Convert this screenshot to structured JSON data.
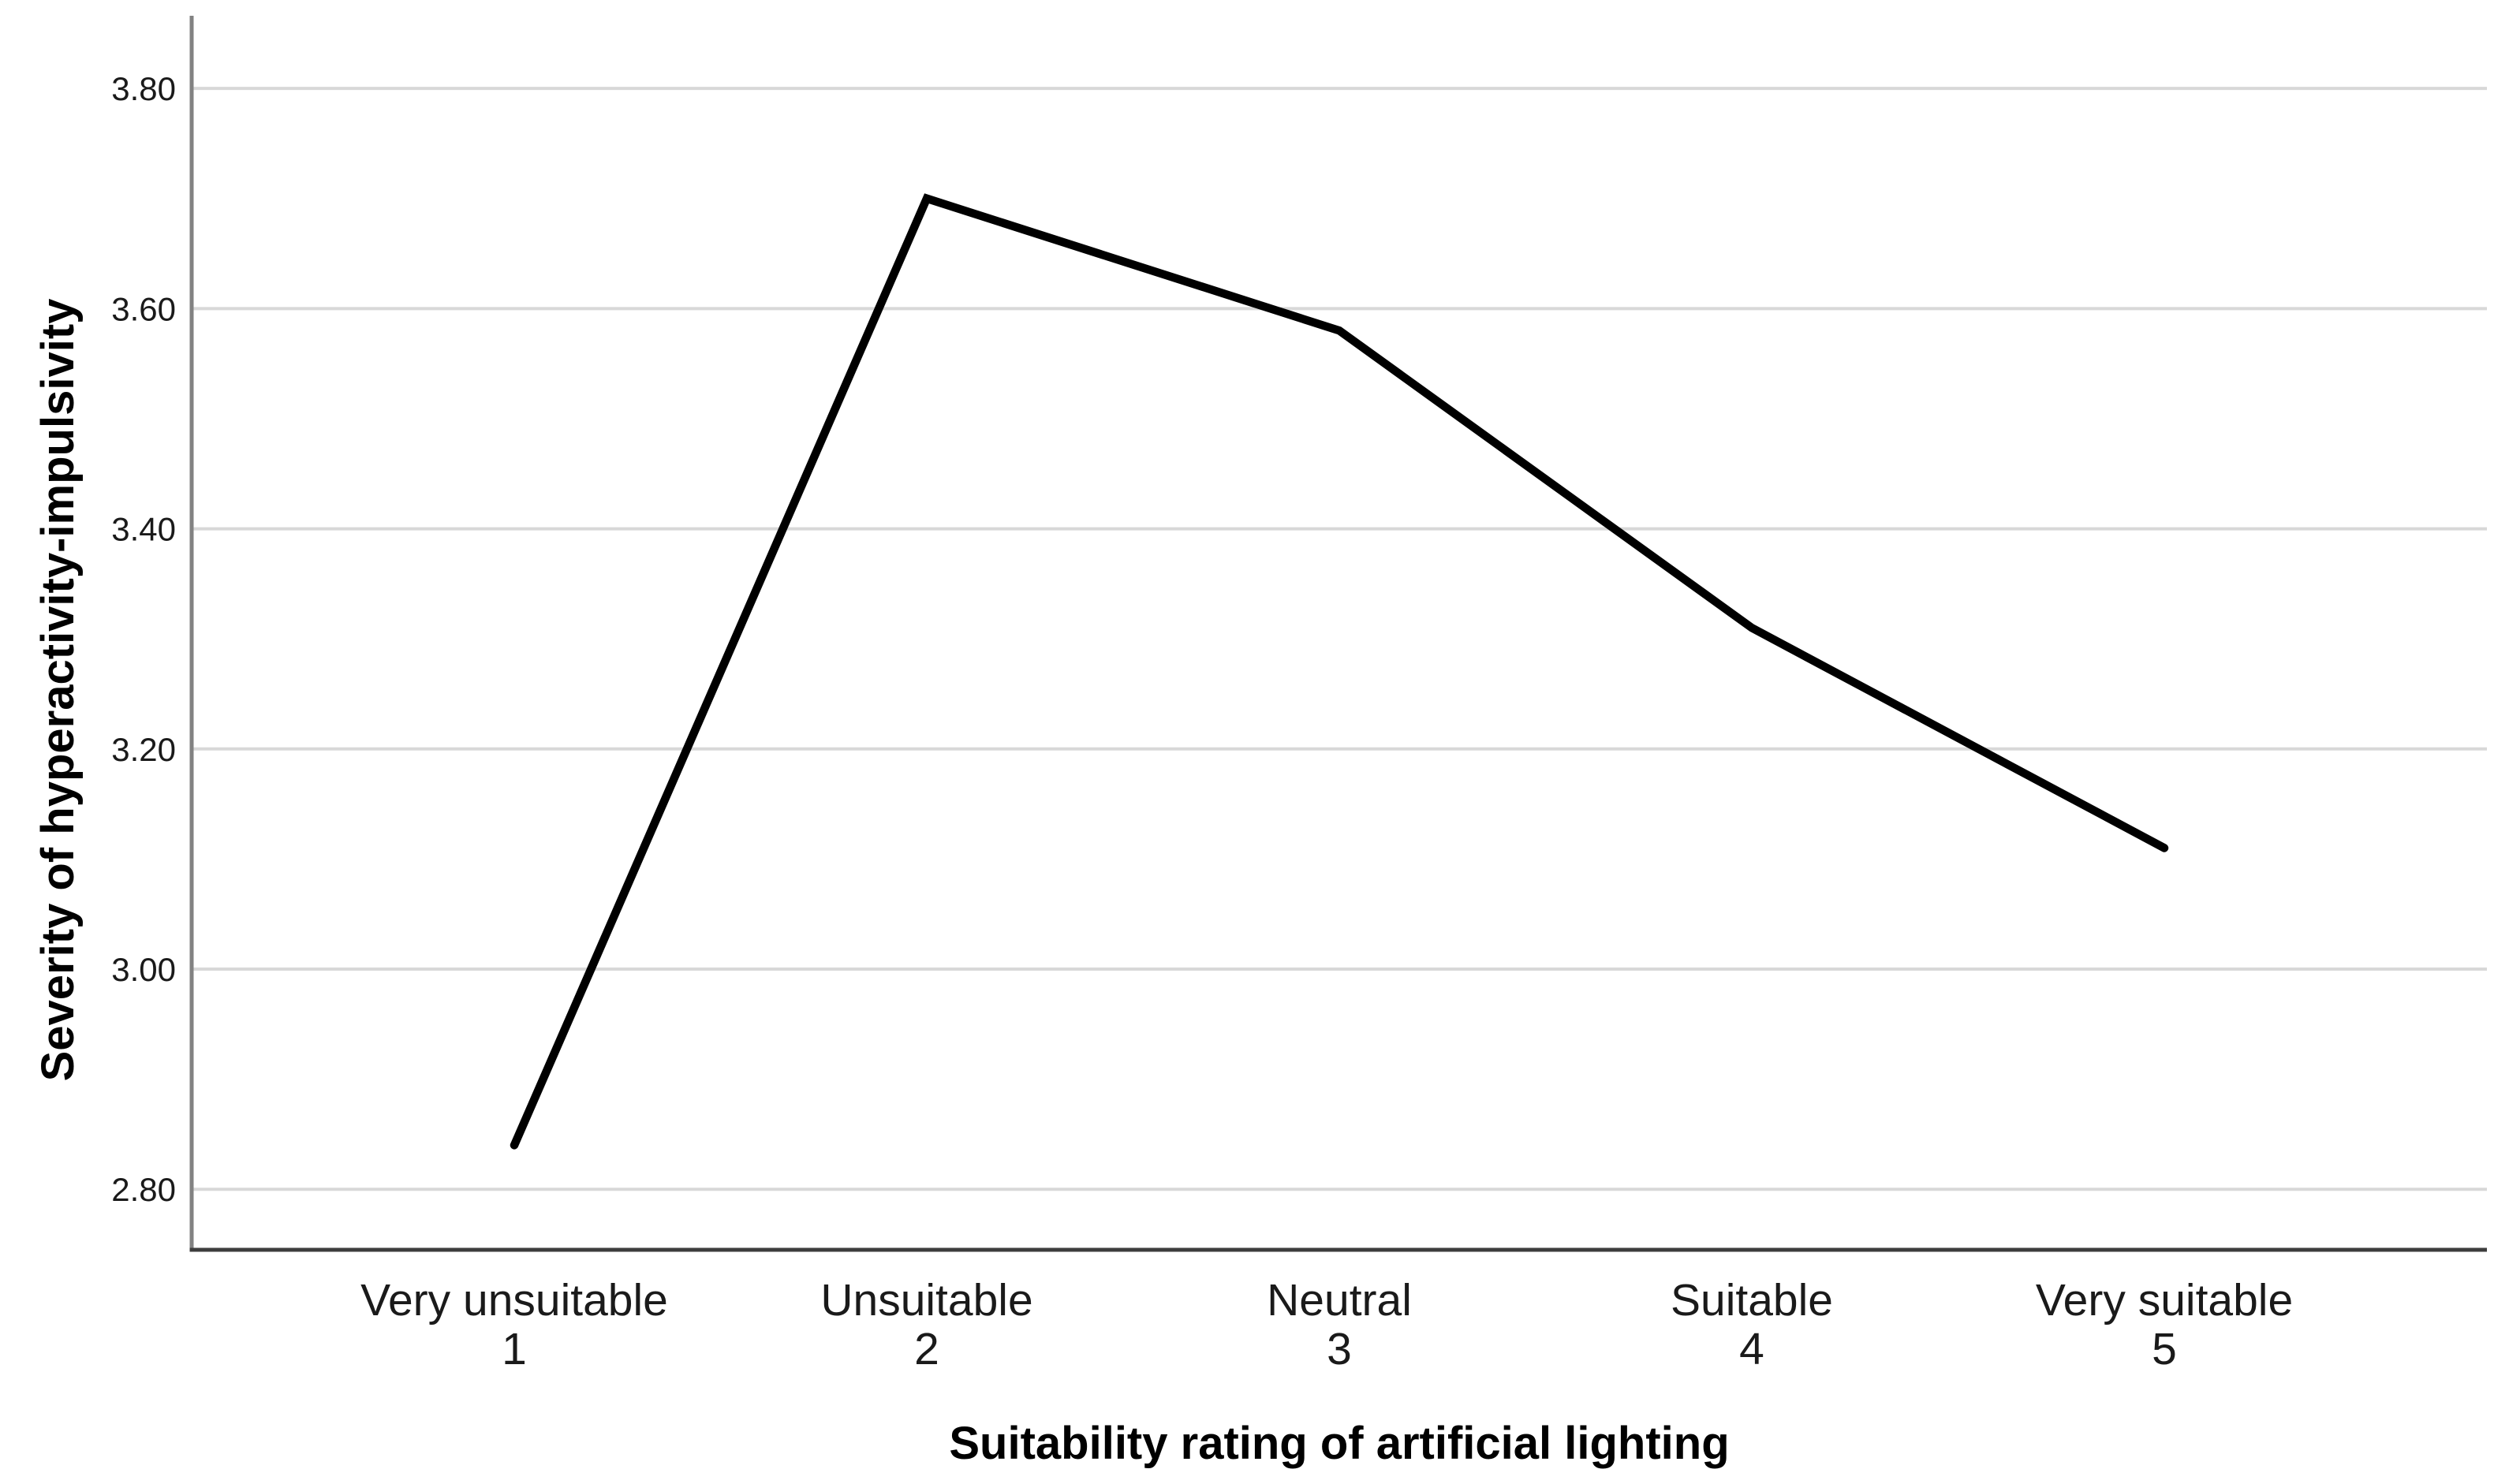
{
  "chart_data": {
    "type": "line",
    "title": "",
    "xlabel": "Suitability rating of artificial lighting",
    "ylabel": "Severity of hyperactivity-impulsivity",
    "categories": [
      {
        "label": "Very unsuitable",
        "number": "1"
      },
      {
        "label": "Unsuitable",
        "number": "2"
      },
      {
        "label": "Neutral",
        "number": "3"
      },
      {
        "label": "Suitable",
        "number": "4"
      },
      {
        "label": "Very suitable",
        "number": "5"
      }
    ],
    "values": [
      2.84,
      3.7,
      3.58,
      3.31,
      3.11
    ],
    "y_ticks": [
      {
        "value": 2.8,
        "label": "2.80"
      },
      {
        "value": 3.0,
        "label": "3.00"
      },
      {
        "value": 3.2,
        "label": "3.20"
      },
      {
        "value": 3.4,
        "label": "3.40"
      },
      {
        "value": 3.6,
        "label": "3.60"
      },
      {
        "value": 3.8,
        "label": "3.80"
      }
    ],
    "ylim": [
      2.745,
      3.866
    ],
    "grid": "horizontal",
    "legend": "none",
    "styles": {
      "line_color": "#000000",
      "line_width": 10.5,
      "gridline_color": "#d8d8d8",
      "gridline_width": 4,
      "x_axis_color": "#3d3d3d",
      "y_axis_color": "#828282",
      "axis_width": 5,
      "text_color": "#1a1a1a",
      "background": "#ffffff"
    }
  }
}
